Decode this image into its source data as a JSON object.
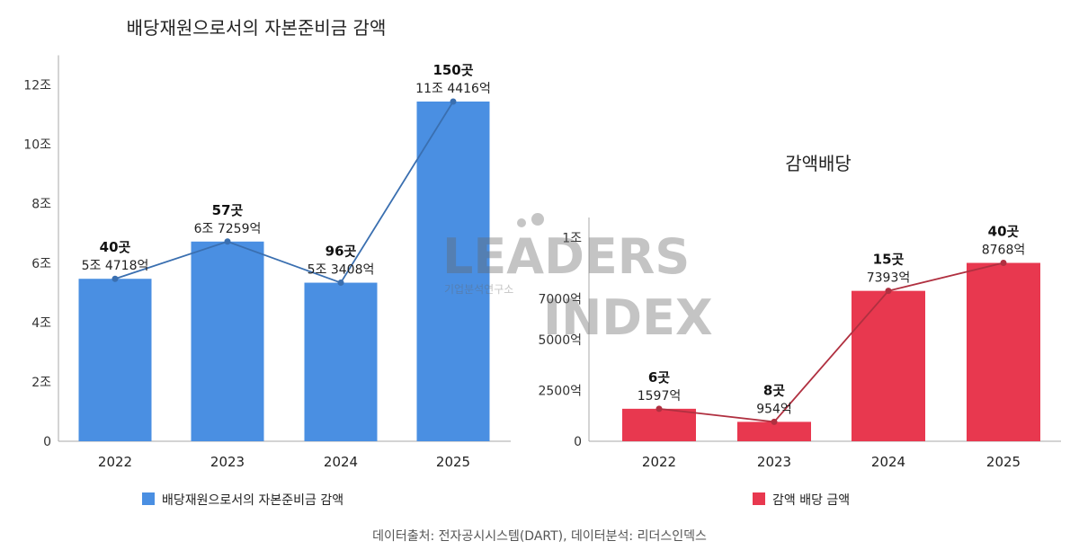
{
  "source": "데이터출처: 전자공시시스템(DART), 데이터분석: 리더스인덱스",
  "watermark": {
    "line1": "LEADERS",
    "line2": "INDEX",
    "sub": "기업분석연구소"
  },
  "chart_data": [
    {
      "type": "bar",
      "title": "배당재원으로서의 자본준비금 감액",
      "categories": [
        "2022",
        "2023",
        "2024",
        "2025"
      ],
      "series": [
        {
          "name": "배당재원으로서의 자본준비금 감액",
          "color": "#4A8FE2",
          "values": [
            54718,
            67259,
            53408,
            114416
          ]
        }
      ],
      "line_color": "#3A6FB0",
      "bar_labels": [
        "5조 4718억",
        "6조 7259억",
        "5조 3408억",
        "11조 4416억"
      ],
      "count_labels": [
        "40곳",
        "57곳",
        "96곳",
        "150곳"
      ],
      "yticks": [
        0,
        20000,
        40000,
        60000,
        80000,
        100000,
        120000
      ],
      "ytick_labels": [
        "0",
        "2조",
        "4조",
        "6조",
        "8조",
        "10조",
        "12조"
      ],
      "ylim": [
        0,
        130000
      ],
      "unit": "억원",
      "legend_position": "bottom"
    },
    {
      "type": "bar",
      "title": "감액배당",
      "categories": [
        "2022",
        "2023",
        "2024",
        "2025"
      ],
      "series": [
        {
          "name": "감액 배당 금액",
          "color": "#E8384F",
          "values": [
            1597,
            954,
            7393,
            8768
          ]
        }
      ],
      "line_color": "#B03040",
      "bar_labels": [
        "1597억",
        "954억",
        "7393억",
        "8768억"
      ],
      "count_labels": [
        "6곳",
        "8곳",
        "15곳",
        "40곳"
      ],
      "yticks": [
        0,
        2500,
        5000,
        7000,
        10000
      ],
      "ytick_labels": [
        "0",
        "2500억",
        "5000억",
        "7000억",
        "1조"
      ],
      "ylim": [
        0,
        11000
      ],
      "unit": "억원",
      "legend_position": "bottom"
    }
  ]
}
